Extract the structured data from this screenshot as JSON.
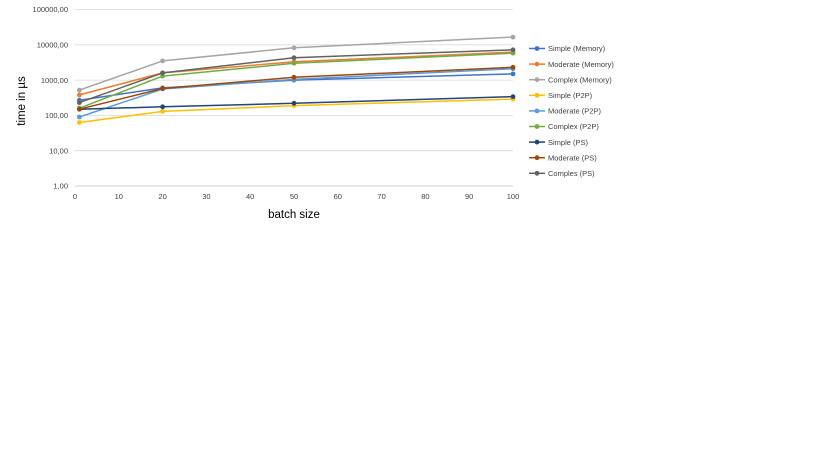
{
  "chart_data": {
    "type": "line",
    "title": "",
    "xlabel": "batch size",
    "ylabel": "time in µs",
    "x": [
      1,
      20,
      50,
      100
    ],
    "xlim": [
      0,
      100
    ],
    "xticks": [
      "0",
      "10",
      "20",
      "30",
      "40",
      "50",
      "60",
      "70",
      "80",
      "90",
      "100"
    ],
    "xtick_values": [
      0,
      10,
      20,
      30,
      40,
      50,
      60,
      70,
      80,
      90,
      100
    ],
    "yscale": "log",
    "ylim": [
      1,
      100000
    ],
    "yticks": [
      "1,00",
      "10,00",
      "100,00",
      "1000,00",
      "10000,00",
      "100000,00"
    ],
    "ytick_values": [
      1,
      10,
      100,
      1000,
      10000,
      100000
    ],
    "grid": "horizontal",
    "legend": "right",
    "series": [
      {
        "name": "Simple (Memory)",
        "color": "#4472C4",
        "values": [
          270,
          600,
          1000,
          1500
        ]
      },
      {
        "name": "Moderate (Memory)",
        "color": "#ED7D31",
        "values": [
          380,
          1600,
          3300,
          6200
        ]
      },
      {
        "name": "Complex (Memory)",
        "color": "#A5A5A5",
        "values": [
          520,
          3500,
          8200,
          16500
        ]
      },
      {
        "name": "Simple (P2P)",
        "color": "#FFC000",
        "values": [
          63,
          130,
          190,
          290
        ]
      },
      {
        "name": "Moderate (P2P)",
        "color": "#5B9BD5",
        "values": [
          90,
          560,
          1050,
          2100
        ]
      },
      {
        "name": "Complex (P2P)",
        "color": "#70AD47",
        "values": [
          160,
          1300,
          3000,
          5800
        ]
      },
      {
        "name": "Simple (PS)",
        "color": "#264478",
        "values": [
          150,
          175,
          220,
          340
        ]
      },
      {
        "name": "Moderate (PS)",
        "color": "#9E480E",
        "values": [
          150,
          580,
          1200,
          2300
        ]
      },
      {
        "name": "Comples (PS)",
        "color": "#636363",
        "values": [
          230,
          1600,
          4300,
          7200
        ]
      }
    ]
  }
}
